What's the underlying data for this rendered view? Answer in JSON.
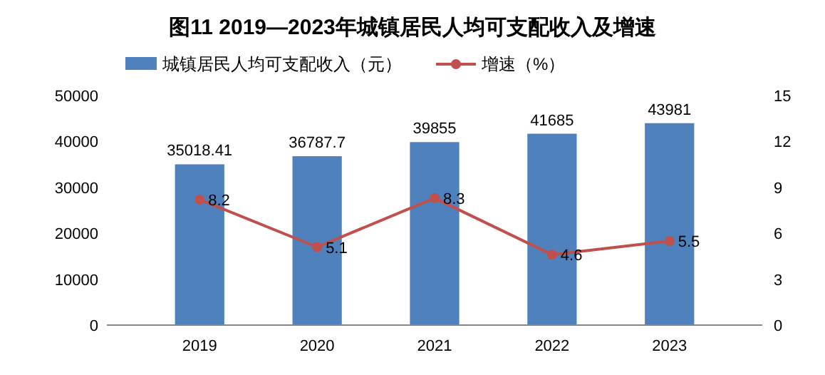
{
  "chart_data": {
    "type": "bar",
    "title": "图11    2019—2023年城镇居民人均可支配收入及增速",
    "categories": [
      "2019",
      "2020",
      "2021",
      "2022",
      "2023"
    ],
    "series": [
      {
        "name": "城镇居民人均可支配收入（元）",
        "color": "#4f81bd",
        "values": [
          35018.41,
          36787.7,
          39855,
          41685,
          43981
        ]
      },
      {
        "name": "增速（%）",
        "type": "line",
        "axis": "y2",
        "color": "#c0504d",
        "values": [
          8.2,
          5.1,
          8.3,
          4.6,
          5.5
        ]
      }
    ],
    "ylim": [
      0,
      50000
    ],
    "yticks": [
      0,
      10000,
      20000,
      30000,
      40000,
      50000
    ],
    "y2lim": [
      0,
      15
    ],
    "y2ticks": [
      0,
      3,
      6,
      9,
      12,
      15
    ],
    "data_labels": true,
    "legend": "top",
    "marker": "circle",
    "grid": false
  }
}
